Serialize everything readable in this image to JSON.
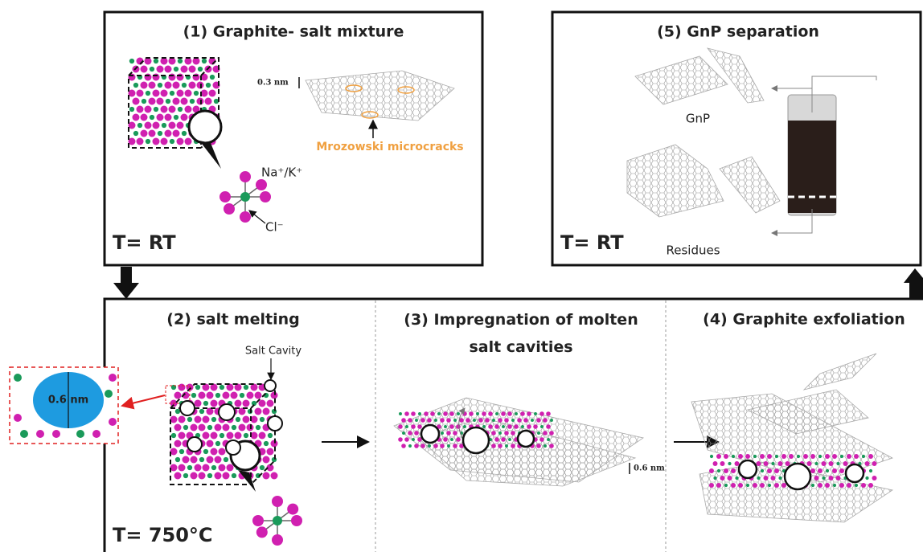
{
  "panel1": {
    "title": "(1) Graphite- salt mixture",
    "spacing": "0.3 nm",
    "cracks": "Mrozowski microcracks",
    "cation": "Na⁺/K⁺",
    "anion": "Cl⁻",
    "temperature": "T= RT"
  },
  "panel2": {
    "title": "(2) salt melting",
    "cavity": "Salt Cavity",
    "cavity_size": "0.6 nm",
    "temperature": "T= 750°C"
  },
  "panel3": {
    "title": [
      "(3) Impregnation of molten",
      "salt cavities"
    ],
    "spacing": "0.6 nm"
  },
  "panel4": {
    "title": "(4) Graphite exfoliation"
  },
  "panel5": {
    "title": "(5) GnP separation",
    "gnp": "GnP",
    "residues": "Residues",
    "temperature": "T= RT"
  }
}
